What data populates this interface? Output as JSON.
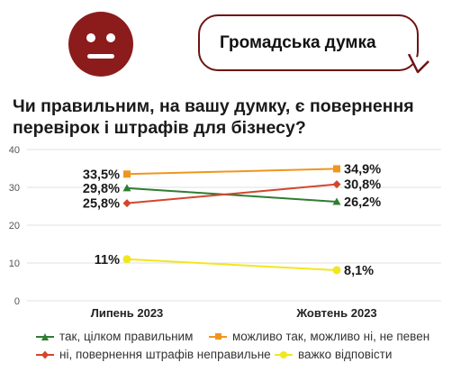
{
  "header": {
    "bubble_title": "Громадська думка",
    "question": "Чи правильним, на вашу думку, є повернення перевірок і штрафів для бізнесу?",
    "face_icon": "neutral-face-icon",
    "accent_color": "#8c1c1c"
  },
  "chart_data": {
    "type": "line",
    "categories": [
      "Липень 2023",
      "Жовтень 2023"
    ],
    "ylim": [
      0,
      40
    ],
    "yticks": [
      "0",
      "10",
      "20",
      "30",
      "40"
    ],
    "grid": true,
    "legend_position": "bottom",
    "series": [
      {
        "name": "так, цілком правильним",
        "values": [
          29.8,
          26.2
        ],
        "labels": [
          "29,8%",
          "26,2%"
        ],
        "color": "#2e7d32",
        "marker": "triangle"
      },
      {
        "name": "можливо так, можливо ні, не певен",
        "values": [
          33.5,
          34.9
        ],
        "labels": [
          "33,5%",
          "34,9%"
        ],
        "color": "#f0961e",
        "marker": "square"
      },
      {
        "name": "ні, повернення штрафів неправильне",
        "values": [
          25.8,
          30.8
        ],
        "labels": [
          "25,8%",
          "30,8%"
        ],
        "color": "#d2462d",
        "marker": "diamond"
      },
      {
        "name": "важко відповісти",
        "values": [
          11,
          8.1
        ],
        "labels": [
          "11%",
          "8,1%"
        ],
        "color": "#f2e61e",
        "marker": "circle"
      }
    ]
  }
}
